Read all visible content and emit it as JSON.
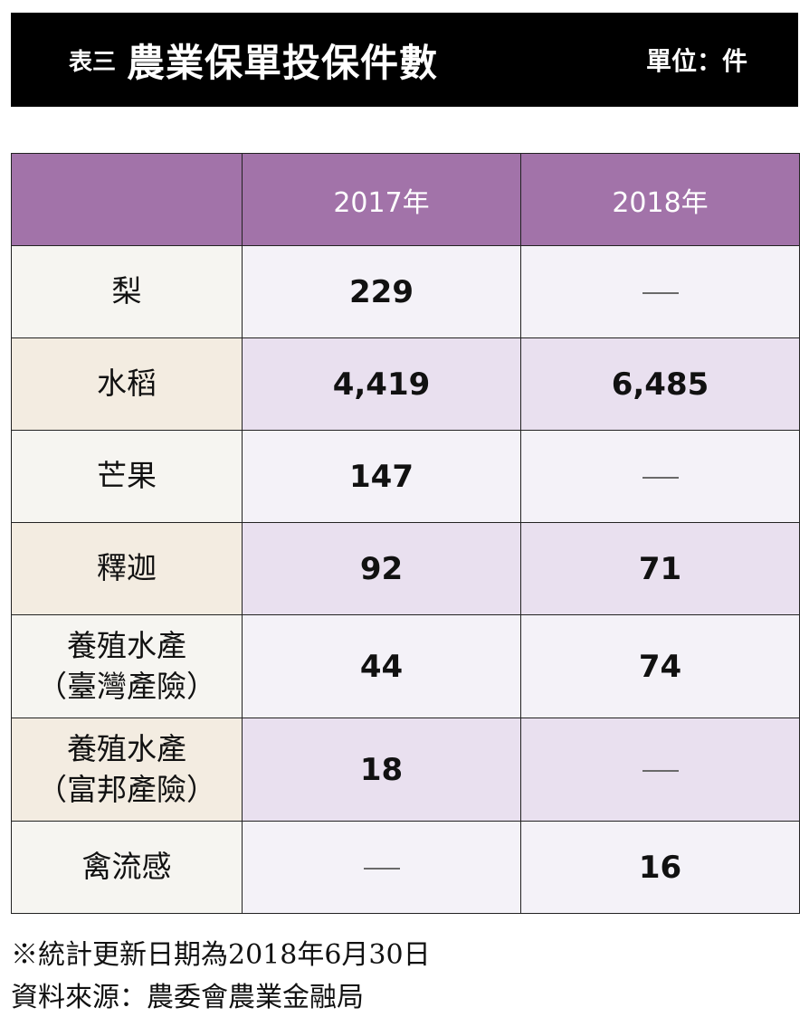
{
  "header": {
    "prefix": "表三",
    "title": "農業保單投保件數",
    "unit": "單位：件"
  },
  "table": {
    "columns": [
      "",
      "2017年",
      "2018年"
    ],
    "rows": [
      {
        "label_lines": [
          "梨"
        ],
        "v2017": "229",
        "v2018": "—"
      },
      {
        "label_lines": [
          "水稻"
        ],
        "v2017": "4,419",
        "v2018": "6,485"
      },
      {
        "label_lines": [
          "芒果"
        ],
        "v2017": "147",
        "v2018": "—"
      },
      {
        "label_lines": [
          "釋迦"
        ],
        "v2017": "92",
        "v2018": "71"
      },
      {
        "label_lines": [
          "養殖水產",
          "（臺灣產險）"
        ],
        "v2017": "44",
        "v2018": "74"
      },
      {
        "label_lines": [
          "養殖水產",
          "（富邦產險）"
        ],
        "v2017": "18",
        "v2018": "—"
      },
      {
        "label_lines": [
          "禽流感"
        ],
        "v2017": "—",
        "v2018": "16"
      }
    ]
  },
  "footer": {
    "note": "※統計更新日期為2018年6月30日",
    "source": "資料來源：農委會農業金融局"
  },
  "colors": {
    "header_bg": "#000000",
    "table_head_bg": "#a273a9"
  }
}
